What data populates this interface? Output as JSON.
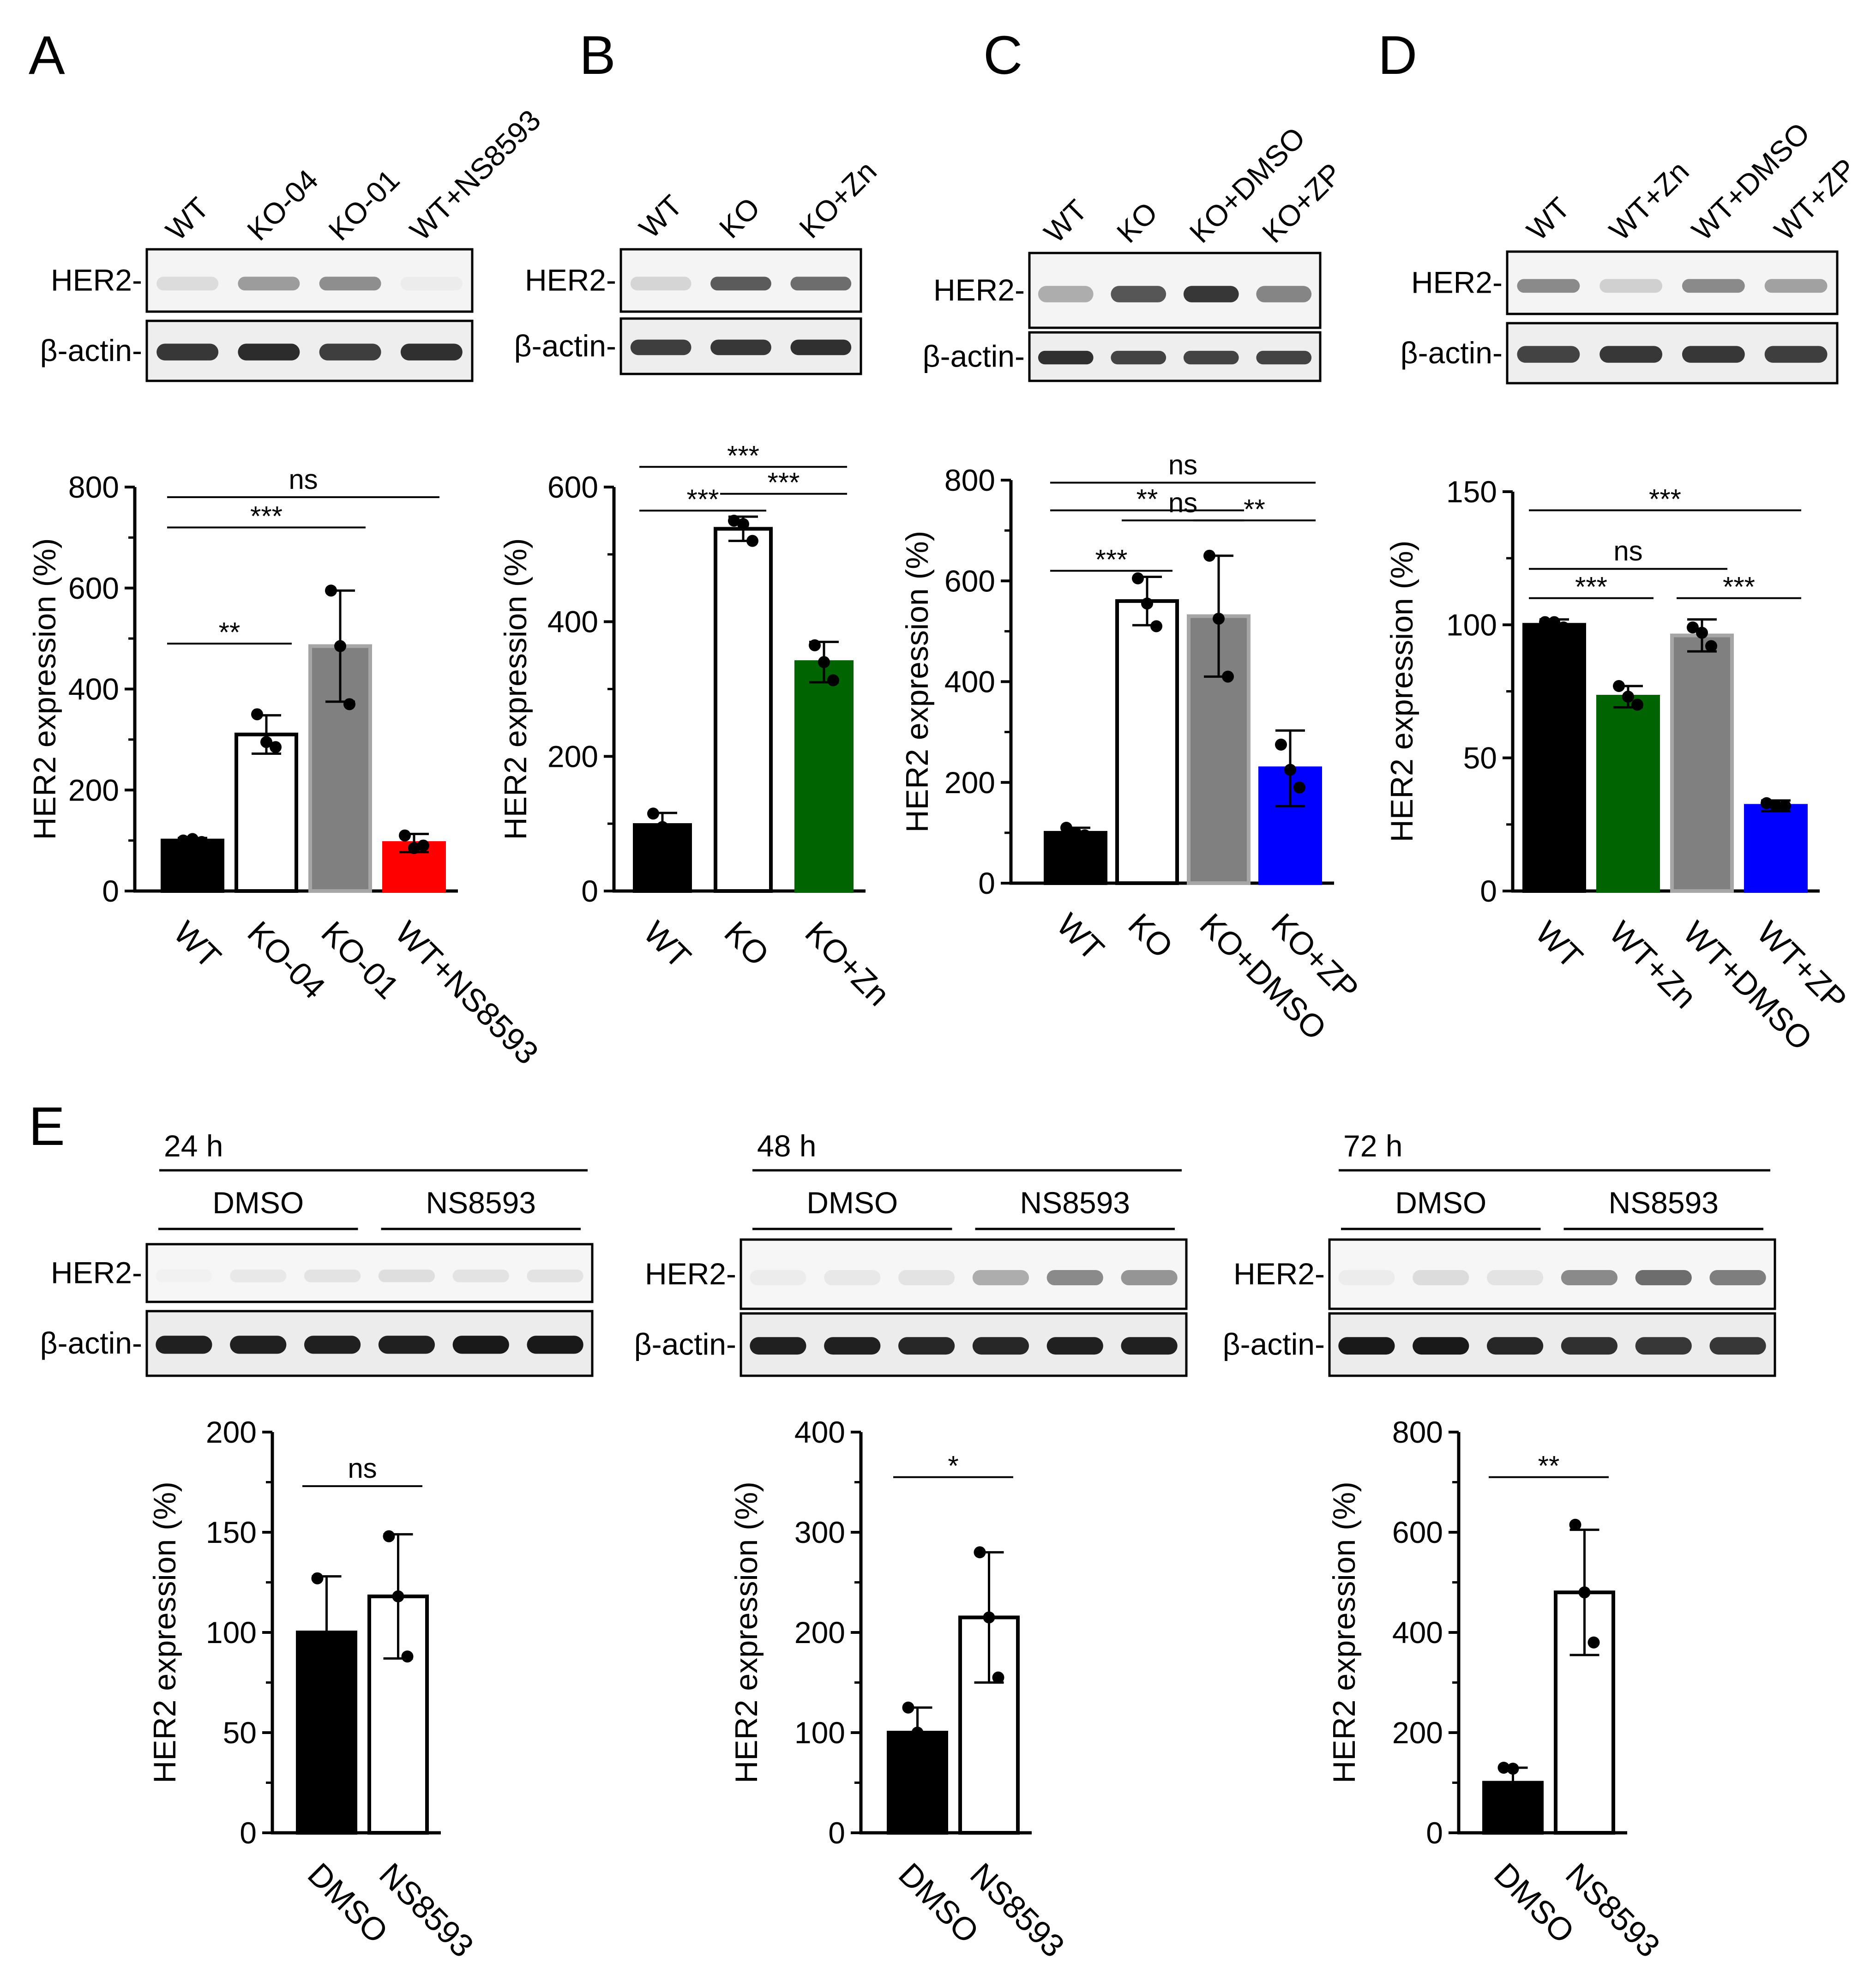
{
  "colors": {
    "black": "#000000",
    "white": "#ffffff",
    "gray": "#808080",
    "red": "#ff0000",
    "green": "#006400",
    "blue": "#0000ff",
    "bar_border_black": "#000000",
    "bar_border_gray": "#a6a6a6"
  },
  "panels": {
    "A": {
      "label": "A",
      "lanes": [
        "WT",
        "KO-04",
        "KO-01",
        "WT+NS8593"
      ],
      "blot_rows": [
        "HER2-",
        "β-actin-"
      ]
    },
    "B": {
      "label": "B",
      "lanes": [
        "WT",
        "KO",
        "KO+Zn"
      ],
      "blot_rows": [
        "HER2-",
        "β-actin-"
      ]
    },
    "C": {
      "label": "C",
      "lanes": [
        "WT",
        "KO",
        "KO+DMSO",
        "KO+ZP"
      ],
      "blot_rows": [
        "HER2-",
        "β-actin-"
      ]
    },
    "D": {
      "label": "D",
      "lanes": [
        "WT",
        "WT+Zn",
        "WT+DMSO",
        "WT+ZP"
      ],
      "blot_rows": [
        "HER2-",
        "β-actin-"
      ]
    },
    "E": {
      "label": "E",
      "blots": [
        {
          "time": "24 h",
          "groups": [
            "DMSO",
            "NS8593"
          ],
          "blot_rows": [
            "HER2-",
            "β-actin-"
          ]
        },
        {
          "time": "48 h",
          "groups": [
            "DMSO",
            "NS8593"
          ],
          "blot_rows": [
            "HER2-",
            "β-actin-"
          ]
        },
        {
          "time": "72 h",
          "groups": [
            "DMSO",
            "NS8593"
          ],
          "blot_rows": [
            "HER2-",
            "β-actin-"
          ]
        }
      ]
    }
  },
  "chart_data": [
    {
      "id": "A",
      "type": "bar",
      "categories": [
        "WT",
        "KO-04",
        "KO-01",
        "WT+NS8593"
      ],
      "values": [
        100,
        310,
        485,
        95
      ],
      "sd": [
        5,
        38,
        110,
        18
      ],
      "points": [
        [
          100,
          103,
          97
        ],
        [
          350,
          295,
          285
        ],
        [
          595,
          485,
          370
        ],
        [
          110,
          85,
          90
        ]
      ],
      "fills": [
        "black",
        "white",
        "gray",
        "red"
      ],
      "ylabel": "HER2 expression (%)",
      "ylim": [
        0,
        800
      ],
      "yticks": [
        0,
        200,
        400,
        600,
        800
      ],
      "brackets": [
        {
          "from": 0,
          "to": 1,
          "value": 490,
          "text": "**"
        },
        {
          "from": 0,
          "to": 2,
          "value": 720,
          "text": "***"
        },
        {
          "from": 0,
          "to": 3,
          "value": 780,
          "text": "ns"
        }
      ]
    },
    {
      "id": "B",
      "type": "bar",
      "categories": [
        "WT",
        "KO",
        "KO+Zn"
      ],
      "values": [
        98,
        538,
        340
      ],
      "sd": [
        18,
        18,
        30
      ],
      "points": [
        [
          115,
          95,
          88
        ],
        [
          550,
          545,
          520
        ],
        [
          365,
          340,
          313
        ]
      ],
      "fills": [
        "black",
        "white",
        "green"
      ],
      "ylabel": "HER2 expression (%)",
      "ylim": [
        0,
        600
      ],
      "yticks": [
        0,
        200,
        400,
        600
      ],
      "brackets": [
        {
          "from": 0,
          "to": 1,
          "value": 565,
          "text": "***"
        },
        {
          "from": 1,
          "to": 2,
          "value": 590,
          "text": "***"
        },
        {
          "from": 0,
          "to": 2,
          "value": 630,
          "text": "***"
        }
      ]
    },
    {
      "id": "C",
      "type": "bar",
      "categories": [
        "WT",
        "KO",
        "KO+DMSO",
        "KO+ZP"
      ],
      "values": [
        100,
        560,
        530,
        228
      ],
      "sd": [
        10,
        48,
        120,
        75
      ],
      "points": [
        [
          110,
          100,
          95
        ],
        [
          605,
          555,
          510
        ],
        [
          650,
          525,
          410
        ],
        [
          275,
          225,
          190
        ]
      ],
      "fills": [
        "black",
        "white",
        "gray",
        "blue"
      ],
      "ylabel": "HER2 expression (%)",
      "ylim": [
        0,
        800
      ],
      "yticks": [
        0,
        200,
        400,
        600,
        800
      ],
      "brackets": [
        {
          "from": 0,
          "to": 1,
          "value": 620,
          "text": "***"
        },
        {
          "from": 1,
          "to": 2,
          "value": 720,
          "text": "ns"
        },
        {
          "from": 2,
          "to": 3,
          "value": 720,
          "text": "**"
        },
        {
          "from": 0,
          "to": 2,
          "value": 740,
          "text": "**"
        },
        {
          "from": 0,
          "to": 3,
          "value": 795,
          "text": "ns"
        }
      ]
    },
    {
      "id": "D",
      "type": "bar",
      "categories": [
        "WT",
        "WT+Zn",
        "WT+DMSO",
        "WT+ZP"
      ],
      "values": [
        100,
        73,
        96,
        32
      ],
      "sd": [
        2,
        4,
        6,
        2
      ],
      "points": [
        [
          101,
          101,
          99
        ],
        [
          77,
          73,
          70
        ],
        [
          99,
          97,
          92
        ],
        [
          33,
          32,
          32
        ]
      ],
      "fills": [
        "black",
        "green",
        "gray",
        "blue"
      ],
      "ylabel": "HER2 expression (%)",
      "ylim": [
        0,
        150
      ],
      "yticks": [
        0,
        50,
        100,
        150
      ],
      "brackets": [
        {
          "from": 0,
          "to": 1,
          "value": 110,
          "text": "***"
        },
        {
          "from": 2,
          "to": 3,
          "value": 110,
          "text": "***"
        },
        {
          "from": 0,
          "to": 2,
          "value": 121,
          "text": "ns"
        },
        {
          "from": 0,
          "to": 3,
          "value": 143,
          "text": "***"
        }
      ]
    },
    {
      "id": "E24",
      "type": "bar",
      "categories": [
        "DMSO",
        "NS8593"
      ],
      "values": [
        100,
        118
      ],
      "sd": [
        28,
        31
      ],
      "points": [
        [
          127,
          95,
          78
        ],
        [
          148,
          118,
          88
        ]
      ],
      "fills": [
        "black",
        "white"
      ],
      "ylabel": "HER2 expression (%)",
      "ylim": [
        0,
        200
      ],
      "yticks": [
        0,
        50,
        100,
        150,
        200
      ],
      "brackets": [
        {
          "from": 0,
          "to": 1,
          "value": 173,
          "text": "ns"
        }
      ]
    },
    {
      "id": "E48",
      "type": "bar",
      "categories": [
        "DMSO",
        "NS8593"
      ],
      "values": [
        100,
        215
      ],
      "sd": [
        25,
        65
      ],
      "points": [
        [
          125,
          100,
          85
        ],
        [
          280,
          215,
          155
        ]
      ],
      "fills": [
        "black",
        "white"
      ],
      "ylabel": "HER2 expression (%)",
      "ylim": [
        0,
        400
      ],
      "yticks": [
        0,
        100,
        200,
        300,
        400
      ],
      "brackets": [
        {
          "from": 0,
          "to": 1,
          "value": 355,
          "text": "*"
        }
      ]
    },
    {
      "id": "E72",
      "type": "bar",
      "categories": [
        "DMSO",
        "NS8593"
      ],
      "values": [
        100,
        480
      ],
      "sd": [
        30,
        125
      ],
      "points": [
        [
          130,
          128,
          70
        ],
        [
          615,
          480,
          380
        ]
      ],
      "fills": [
        "black",
        "white"
      ],
      "ylabel": "HER2 expression (%)",
      "ylim": [
        0,
        800
      ],
      "yticks": [
        0,
        200,
        400,
        600,
        800
      ],
      "brackets": [
        {
          "from": 0,
          "to": 1,
          "value": 710,
          "text": "**"
        }
      ]
    }
  ],
  "blot_bands": {
    "A": {
      "her2": [
        0.15,
        0.42,
        0.48,
        0.08
      ],
      "actin": [
        0.85,
        0.9,
        0.82,
        0.88
      ]
    },
    "B": {
      "her2": [
        0.18,
        0.7,
        0.62
      ],
      "actin": [
        0.82,
        0.85,
        0.88
      ]
    },
    "C": {
      "her2": [
        0.35,
        0.72,
        0.85,
        0.52
      ],
      "actin": [
        0.88,
        0.8,
        0.8,
        0.8
      ]
    },
    "D": {
      "her2": [
        0.5,
        0.2,
        0.5,
        0.4
      ],
      "actin": [
        0.8,
        0.85,
        0.85,
        0.82
      ]
    },
    "E24": {
      "her2": [
        0.06,
        0.1,
        0.12,
        0.14,
        0.12,
        0.12
      ],
      "actin": [
        0.95,
        0.95,
        0.95,
        0.95,
        0.98,
        0.98
      ]
    },
    "E48": {
      "her2": [
        0.08,
        0.1,
        0.12,
        0.35,
        0.5,
        0.45
      ],
      "actin": [
        0.95,
        0.95,
        0.92,
        0.92,
        0.95,
        0.95
      ]
    },
    "E72": {
      "her2": [
        0.08,
        0.15,
        0.12,
        0.5,
        0.62,
        0.55
      ],
      "actin": [
        0.98,
        0.98,
        0.92,
        0.88,
        0.85,
        0.85
      ]
    }
  }
}
